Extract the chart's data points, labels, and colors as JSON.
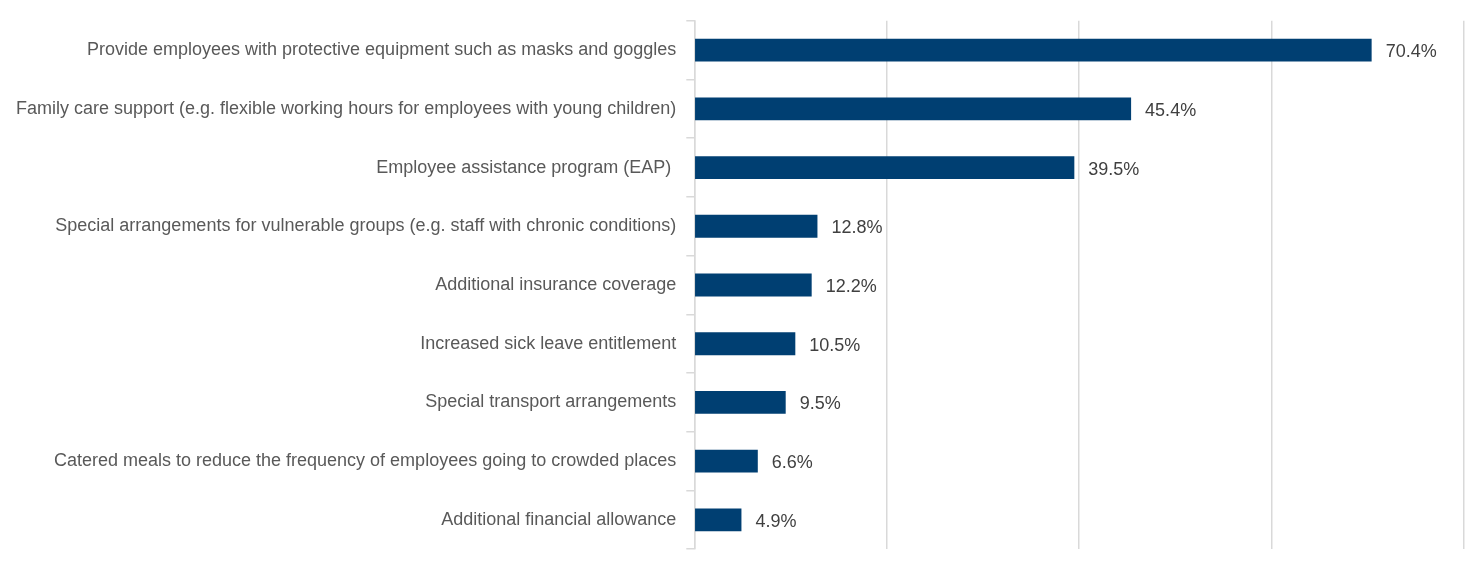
{
  "chart_data": {
    "type": "bar",
    "orientation": "horizontal",
    "categories": [
      "Provide employees with protective equipment such as masks and goggles",
      "Family care support (e.g. flexible working hours for employees with young children)",
      "Employee assistance program (EAP) ",
      "Special arrangements for vulnerable groups (e.g. staff with chronic conditions)",
      "Additional insurance coverage",
      "Increased sick leave entitlement",
      "Special transport arrangements",
      "Catered meals to reduce the frequency of employees going to crowded places",
      "Additional financial allowance"
    ],
    "values": [
      70.4,
      45.4,
      39.5,
      12.8,
      12.2,
      10.5,
      9.5,
      6.6,
      4.9
    ],
    "value_labels": [
      "70.4%",
      "45.4%",
      "39.5%",
      "12.8%",
      "12.2%",
      "10.5%",
      "9.5%",
      "6.6%",
      "4.9%"
    ],
    "color": "#003f72",
    "xlim": [
      0,
      80
    ],
    "xticks": [
      {
        "value": 0,
        "label": null
      },
      {
        "value": 20,
        "label": null
      },
      {
        "value": 40,
        "label": null
      },
      {
        "value": 60,
        "label": null
      },
      {
        "value": 80,
        "label": null
      }
    ],
    "tick_labels": "y",
    "grid": "x",
    "legend": false
  }
}
